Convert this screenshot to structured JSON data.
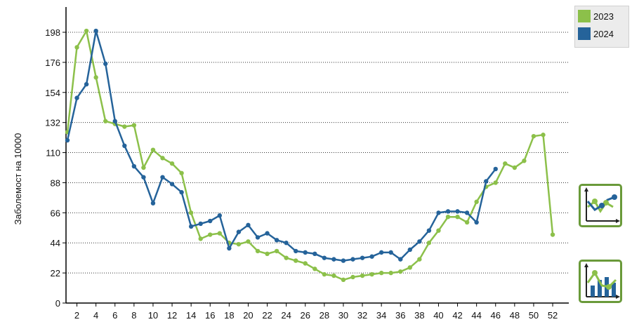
{
  "chart_data": {
    "type": "line",
    "ylabel": "Заболемост на 10000",
    "ylim": [
      0,
      220
    ],
    "yticks": [
      0,
      22,
      44,
      66,
      88,
      110,
      132,
      154,
      176,
      198
    ],
    "xlim": [
      0.5,
      52.5
    ],
    "xticks": [
      2,
      4,
      6,
      8,
      10,
      12,
      14,
      16,
      18,
      20,
      22,
      24,
      26,
      28,
      30,
      32,
      34,
      36,
      38,
      40,
      42,
      44,
      46,
      48,
      50,
      52
    ],
    "grid": "horizontal-dotted",
    "legend_position": "top-right",
    "series": [
      {
        "name": "2023",
        "color": "#8cc04a",
        "x": [
          1,
          2,
          3,
          4,
          5,
          6,
          7,
          8,
          9,
          10,
          11,
          12,
          13,
          14,
          15,
          16,
          17,
          18,
          19,
          20,
          21,
          22,
          23,
          24,
          25,
          26,
          27,
          28,
          29,
          30,
          31,
          32,
          33,
          34,
          35,
          36,
          37,
          38,
          39,
          40,
          41,
          42,
          43,
          44,
          45,
          46,
          47,
          48,
          49,
          50,
          51,
          52
        ],
        "values": [
          125,
          187,
          199,
          165,
          133,
          131,
          129,
          130,
          99,
          112,
          106,
          102,
          95,
          66,
          47,
          50,
          51,
          44,
          43,
          45,
          38,
          36,
          38,
          33,
          31,
          29,
          25,
          21,
          20,
          17,
          19,
          20,
          21,
          22,
          22,
          23,
          26,
          32,
          44,
          53,
          63,
          63,
          59,
          74,
          85,
          88,
          102,
          99,
          104,
          122,
          123,
          50
        ]
      },
      {
        "name": "2024",
        "color": "#25639a",
        "x": [
          1,
          2,
          3,
          4,
          5,
          6,
          7,
          8,
          9,
          10,
          11,
          12,
          13,
          14,
          15,
          16,
          17,
          18,
          19,
          20,
          21,
          22,
          23,
          24,
          25,
          26,
          27,
          28,
          29,
          30,
          31,
          32,
          33,
          34,
          35,
          36,
          37,
          38,
          39,
          40,
          41,
          42,
          43,
          44,
          45,
          46
        ],
        "values": [
          119,
          150,
          160,
          199,
          175,
          133,
          115,
          100,
          92,
          73,
          92,
          87,
          81,
          56,
          58,
          60,
          64,
          40,
          52,
          57,
          48,
          51,
          46,
          44,
          38,
          37,
          36,
          33,
          32,
          31,
          32,
          33,
          34,
          37,
          37,
          32,
          39,
          45,
          53,
          66,
          67,
          67,
          66,
          59,
          89,
          98
        ]
      }
    ]
  },
  "legend": [
    {
      "label": "2023",
      "color": "#8cc04a"
    },
    {
      "label": "2024",
      "color": "#25639a"
    }
  ],
  "controls": {
    "line_button_icon": "line-chart-icon",
    "combo_button_icon": "bar-line-chart-icon",
    "accent_color": "#6a9a3a"
  }
}
